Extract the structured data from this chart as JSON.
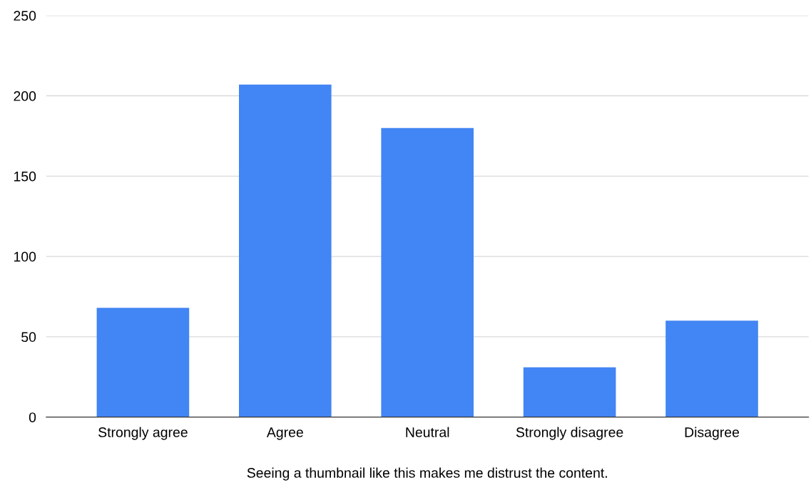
{
  "chart_data": {
    "type": "bar",
    "categories": [
      "Strongly agree",
      "Agree",
      "Neutral",
      "Strongly disagree",
      "Disagree"
    ],
    "values": [
      68,
      207,
      180,
      31,
      60
    ],
    "color": "#4285f4",
    "xlabel": "Seeing a thumbnail like this makes me distrust the content.",
    "ylim": [
      0,
      250
    ],
    "yticks": [
      0,
      50,
      100,
      150,
      200,
      250
    ],
    "grid": "y",
    "legend": false
  }
}
